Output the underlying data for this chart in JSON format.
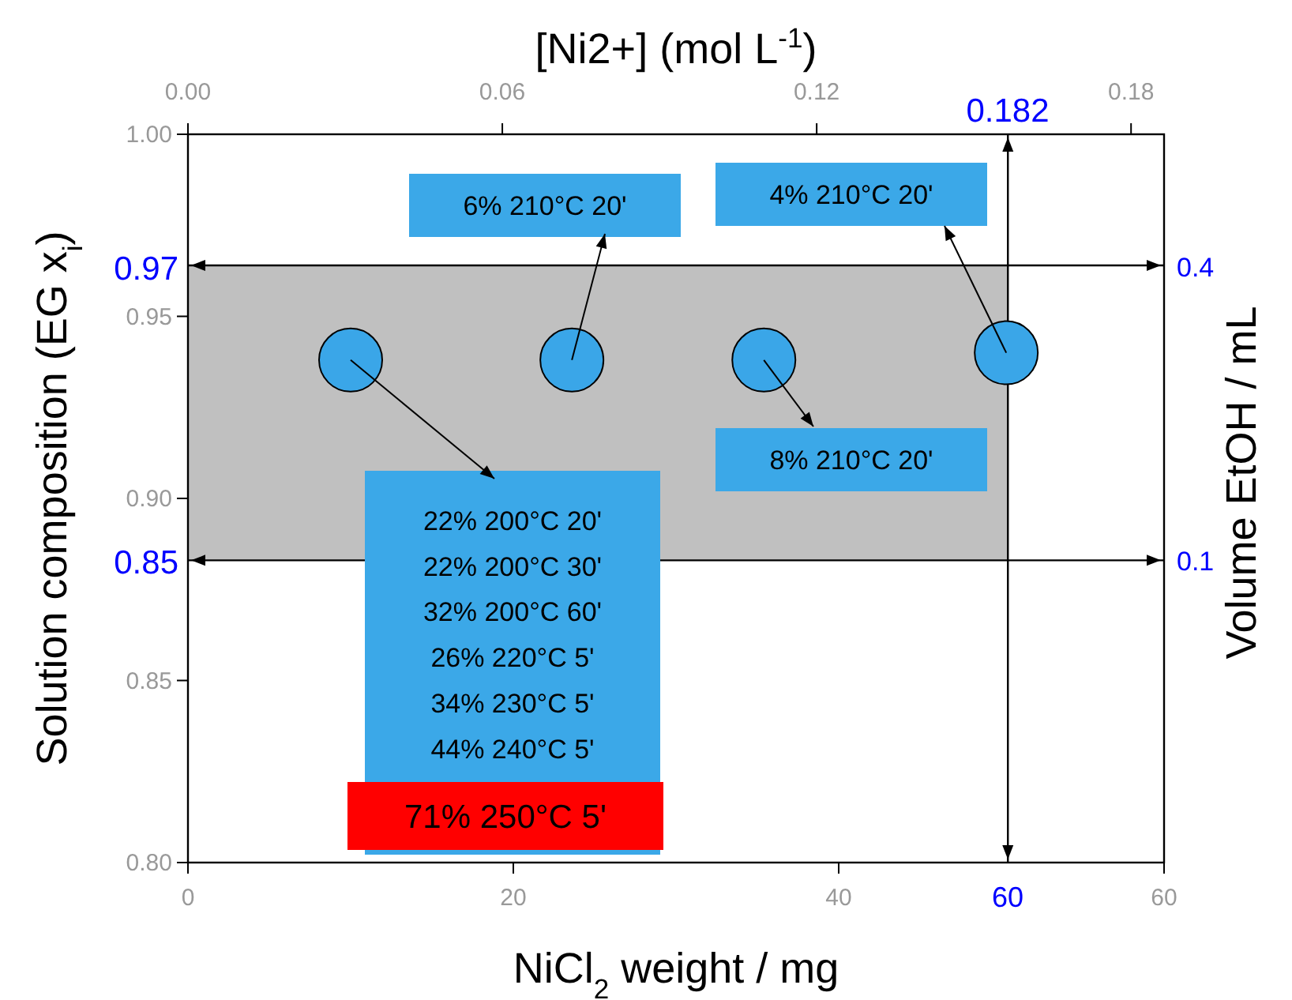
{
  "chart_data": {
    "type": "scatter",
    "xlabel": "NiCl$_{2}$ weight / mg",
    "ylabel": "Solution composition (EG x$_{i}$)",
    "x2label": "[Ni2+] (mol L$^{-1}$)",
    "y2label": "Volume EtOH / mL",
    "x": [
      10.0,
      23.6,
      35.4,
      50.3
    ],
    "values": [
      0.938,
      0.938,
      0.938,
      0.94
    ],
    "color": "#3aa6e8",
    "marker": "circle",
    "xlim": [
      0,
      60
    ],
    "xticks": [
      0,
      20,
      40,
      60
    ],
    "ylim": [
      0.8,
      1.0
    ],
    "yticks": [
      {
        "value": 0.8,
        "label": "0.80"
      },
      0.85,
      {
        "value": 0.9,
        "label": "0.90"
      },
      0.95,
      {
        "value": 1.0,
        "label": "1.00"
      }
    ],
    "x2lim": [
      0,
      0.1863
    ],
    "x2ticks": [
      {
        "value": 0,
        "label": "0.00"
      },
      0.06,
      0.12,
      0.18
    ],
    "y2lim": [
      -0.208,
      0.535
    ],
    "y2ticks": [
      0.4,
      0.1
    ],
    "ref_lines": [
      {
        "axis": "y",
        "value": 0.964
      },
      {
        "axis": "y",
        "value": 0.883
      },
      {
        "axis": "x",
        "value": 50.4
      }
    ],
    "bands": [
      {
        "axis": "y",
        "from": 0.883,
        "to": 0.964,
        "color": "#c0c0c0"
      }
    ],
    "annotations": [
      {
        "text": "6% 210°C 20'",
        "x": 23.6,
        "y": 0.938
      },
      {
        "text": "4% 210°C 20'",
        "x": 50.3,
        "y": 0.94
      },
      {
        "text": "8% 210°C 20'",
        "x": 35.4,
        "y": 0.938
      },
      {
        "text": "22% 200°C 20'\n22% 200°C 30'\n32% 200°C 60'\n26% 220°C 5'\n34% 230°C 5'\n44% 240°C 5'",
        "x": 10.0,
        "y": 0.938
      },
      "71% 250°C 5'",
      "0.97",
      "0.85",
      "60",
      "0.182"
    ]
  }
}
